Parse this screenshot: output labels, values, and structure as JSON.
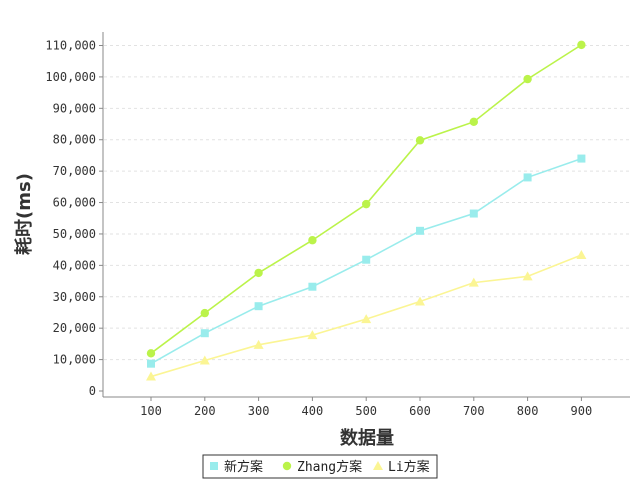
{
  "chart_data": {
    "type": "line",
    "xlabel": "数据量",
    "ylabel": "耗时(ms)",
    "x": [
      100,
      200,
      300,
      400,
      500,
      600,
      700,
      800,
      900
    ],
    "x_ticks": [
      "100",
      "200",
      "300",
      "400",
      "500",
      "600",
      "700",
      "800",
      "900"
    ],
    "ylim": [
      0,
      110000
    ],
    "y_ticks": [
      "0",
      "10,000",
      "20,000",
      "30,000",
      "40,000",
      "50,000",
      "60,000",
      "70,000",
      "80,000",
      "90,000",
      "100,000",
      "110,000"
    ],
    "grid": true,
    "legend_position": "bottom",
    "series": [
      {
        "name": "新方案",
        "color": "#99ecec",
        "marker": "square",
        "values": [
          8700,
          18400,
          27000,
          33200,
          41800,
          51000,
          56500,
          68000,
          74000
        ]
      },
      {
        "name": "Zhang方案",
        "color": "#bbf34a",
        "marker": "circle",
        "values": [
          12000,
          24800,
          37600,
          48000,
          59500,
          79800,
          85700,
          99300,
          110200
        ]
      },
      {
        "name": "Li方案",
        "color": "#fbf594",
        "marker": "triangle",
        "values": [
          4600,
          9700,
          14700,
          17800,
          22900,
          28500,
          34500,
          36500,
          43300
        ]
      }
    ]
  }
}
